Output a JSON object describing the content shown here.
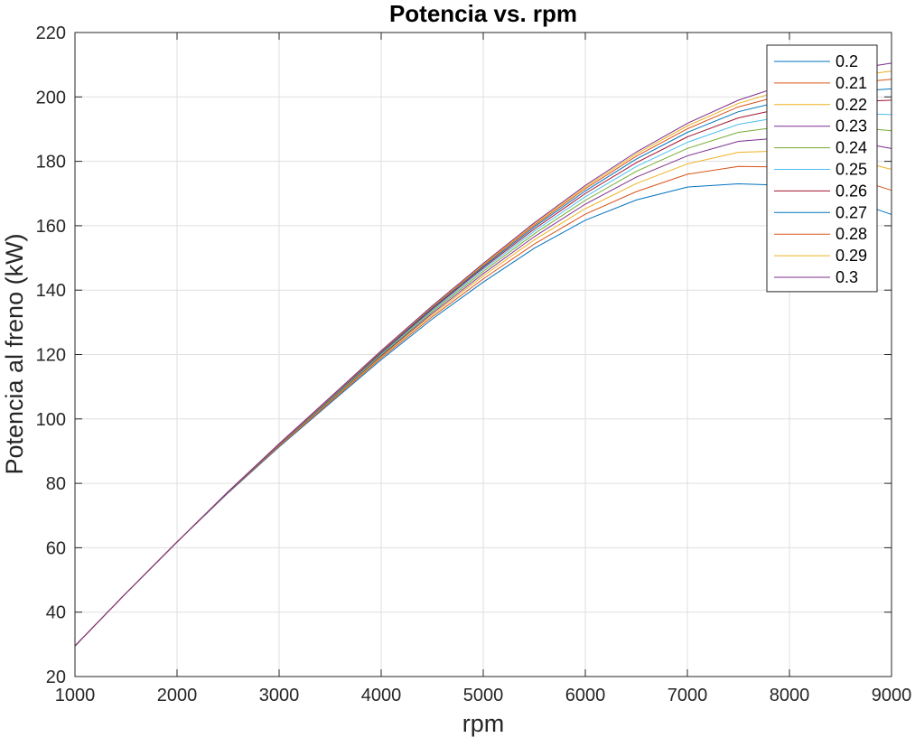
{
  "chart_data": {
    "type": "line",
    "title": "Potencia vs. rpm",
    "xlabel": "rpm",
    "ylabel": "Potencia al freno (kW)",
    "xlim": [
      1000,
      9000
    ],
    "ylim": [
      20,
      220
    ],
    "xticks": [
      "1000",
      "2000",
      "3000",
      "4000",
      "5000",
      "6000",
      "7000",
      "8000",
      "9000"
    ],
    "yticks": [
      "20",
      "40",
      "60",
      "80",
      "100",
      "120",
      "140",
      "160",
      "180",
      "200",
      "220"
    ],
    "grid": true,
    "legend_position": "top-right",
    "x": [
      1000,
      1500,
      2000,
      2500,
      3000,
      3500,
      4000,
      4500,
      5000,
      5500,
      6000,
      6500,
      7000,
      7500,
      8000,
      8500,
      9000
    ],
    "series": [
      {
        "name": "0.2",
        "color": "#0072BD",
        "values": [
          29.5,
          45.9,
          61.8,
          77.0,
          91.3,
          104.9,
          118.4,
          131.0,
          142.5,
          153.0,
          161.7,
          168.0,
          172.0,
          173.0,
          172.5,
          169.0,
          163.5
        ]
      },
      {
        "name": "0.21",
        "color": "#D95319",
        "values": [
          29.5,
          45.9,
          61.8,
          77.1,
          91.5,
          105.2,
          118.9,
          131.7,
          143.5,
          154.3,
          163.6,
          170.6,
          176.0,
          178.4,
          178.2,
          176.0,
          171.0
        ]
      },
      {
        "name": "0.22",
        "color": "#EDB120",
        "values": [
          29.5,
          45.9,
          61.8,
          77.2,
          91.7,
          105.5,
          119.3,
          132.3,
          144.4,
          155.6,
          165.3,
          173.1,
          179.2,
          182.8,
          183.3,
          181.5,
          177.5
        ]
      },
      {
        "name": "0.23",
        "color": "#7E2F8E",
        "values": [
          29.5,
          45.9,
          61.8,
          77.2,
          91.8,
          105.7,
          119.6,
          132.8,
          145.1,
          156.6,
          166.7,
          175.1,
          181.7,
          186.2,
          187.5,
          186.8,
          184.0
        ]
      },
      {
        "name": "0.24",
        "color": "#77AC30",
        "values": [
          29.5,
          45.9,
          61.8,
          77.3,
          91.9,
          105.9,
          119.9,
          133.3,
          145.8,
          157.5,
          167.9,
          176.9,
          184.0,
          189.0,
          191.1,
          191.0,
          189.5
        ]
      },
      {
        "name": "0.25",
        "color": "#4DBEEE",
        "values": [
          29.5,
          45.9,
          61.8,
          77.3,
          92.0,
          106.1,
          120.2,
          133.7,
          146.4,
          158.3,
          169.0,
          178.4,
          185.9,
          191.5,
          194.2,
          195.0,
          194.5
        ]
      },
      {
        "name": "0.26",
        "color": "#A2142F",
        "values": [
          29.5,
          45.9,
          61.8,
          77.3,
          92.1,
          106.3,
          120.5,
          134.1,
          146.9,
          159.0,
          170.0,
          179.6,
          187.6,
          193.5,
          196.9,
          198.3,
          199.0
        ]
      },
      {
        "name": "0.27",
        "color": "#0072BD",
        "values": [
          29.5,
          45.9,
          61.8,
          77.3,
          92.2,
          106.4,
          120.7,
          134.4,
          147.3,
          159.6,
          170.8,
          180.7,
          189.0,
          195.4,
          199.2,
          201.5,
          202.5
        ]
      },
      {
        "name": "0.28",
        "color": "#D95319",
        "values": [
          29.5,
          45.9,
          61.8,
          77.4,
          92.2,
          106.5,
          120.9,
          134.7,
          147.7,
          160.1,
          171.5,
          181.6,
          190.1,
          196.9,
          201.1,
          204.0,
          205.5
        ]
      },
      {
        "name": "0.29",
        "color": "#EDB120",
        "values": [
          29.5,
          45.9,
          61.8,
          77.4,
          92.3,
          106.6,
          121.1,
          134.9,
          148.0,
          160.5,
          172.0,
          182.3,
          191.0,
          198.0,
          202.7,
          206.0,
          208.0
        ]
      },
      {
        "name": "0.3",
        "color": "#7E2F8E",
        "values": [
          29.5,
          45.9,
          61.8,
          77.4,
          92.3,
          106.7,
          121.2,
          135.1,
          148.3,
          160.9,
          172.5,
          182.9,
          191.8,
          199.0,
          204.2,
          208.0,
          210.5
        ]
      }
    ]
  }
}
